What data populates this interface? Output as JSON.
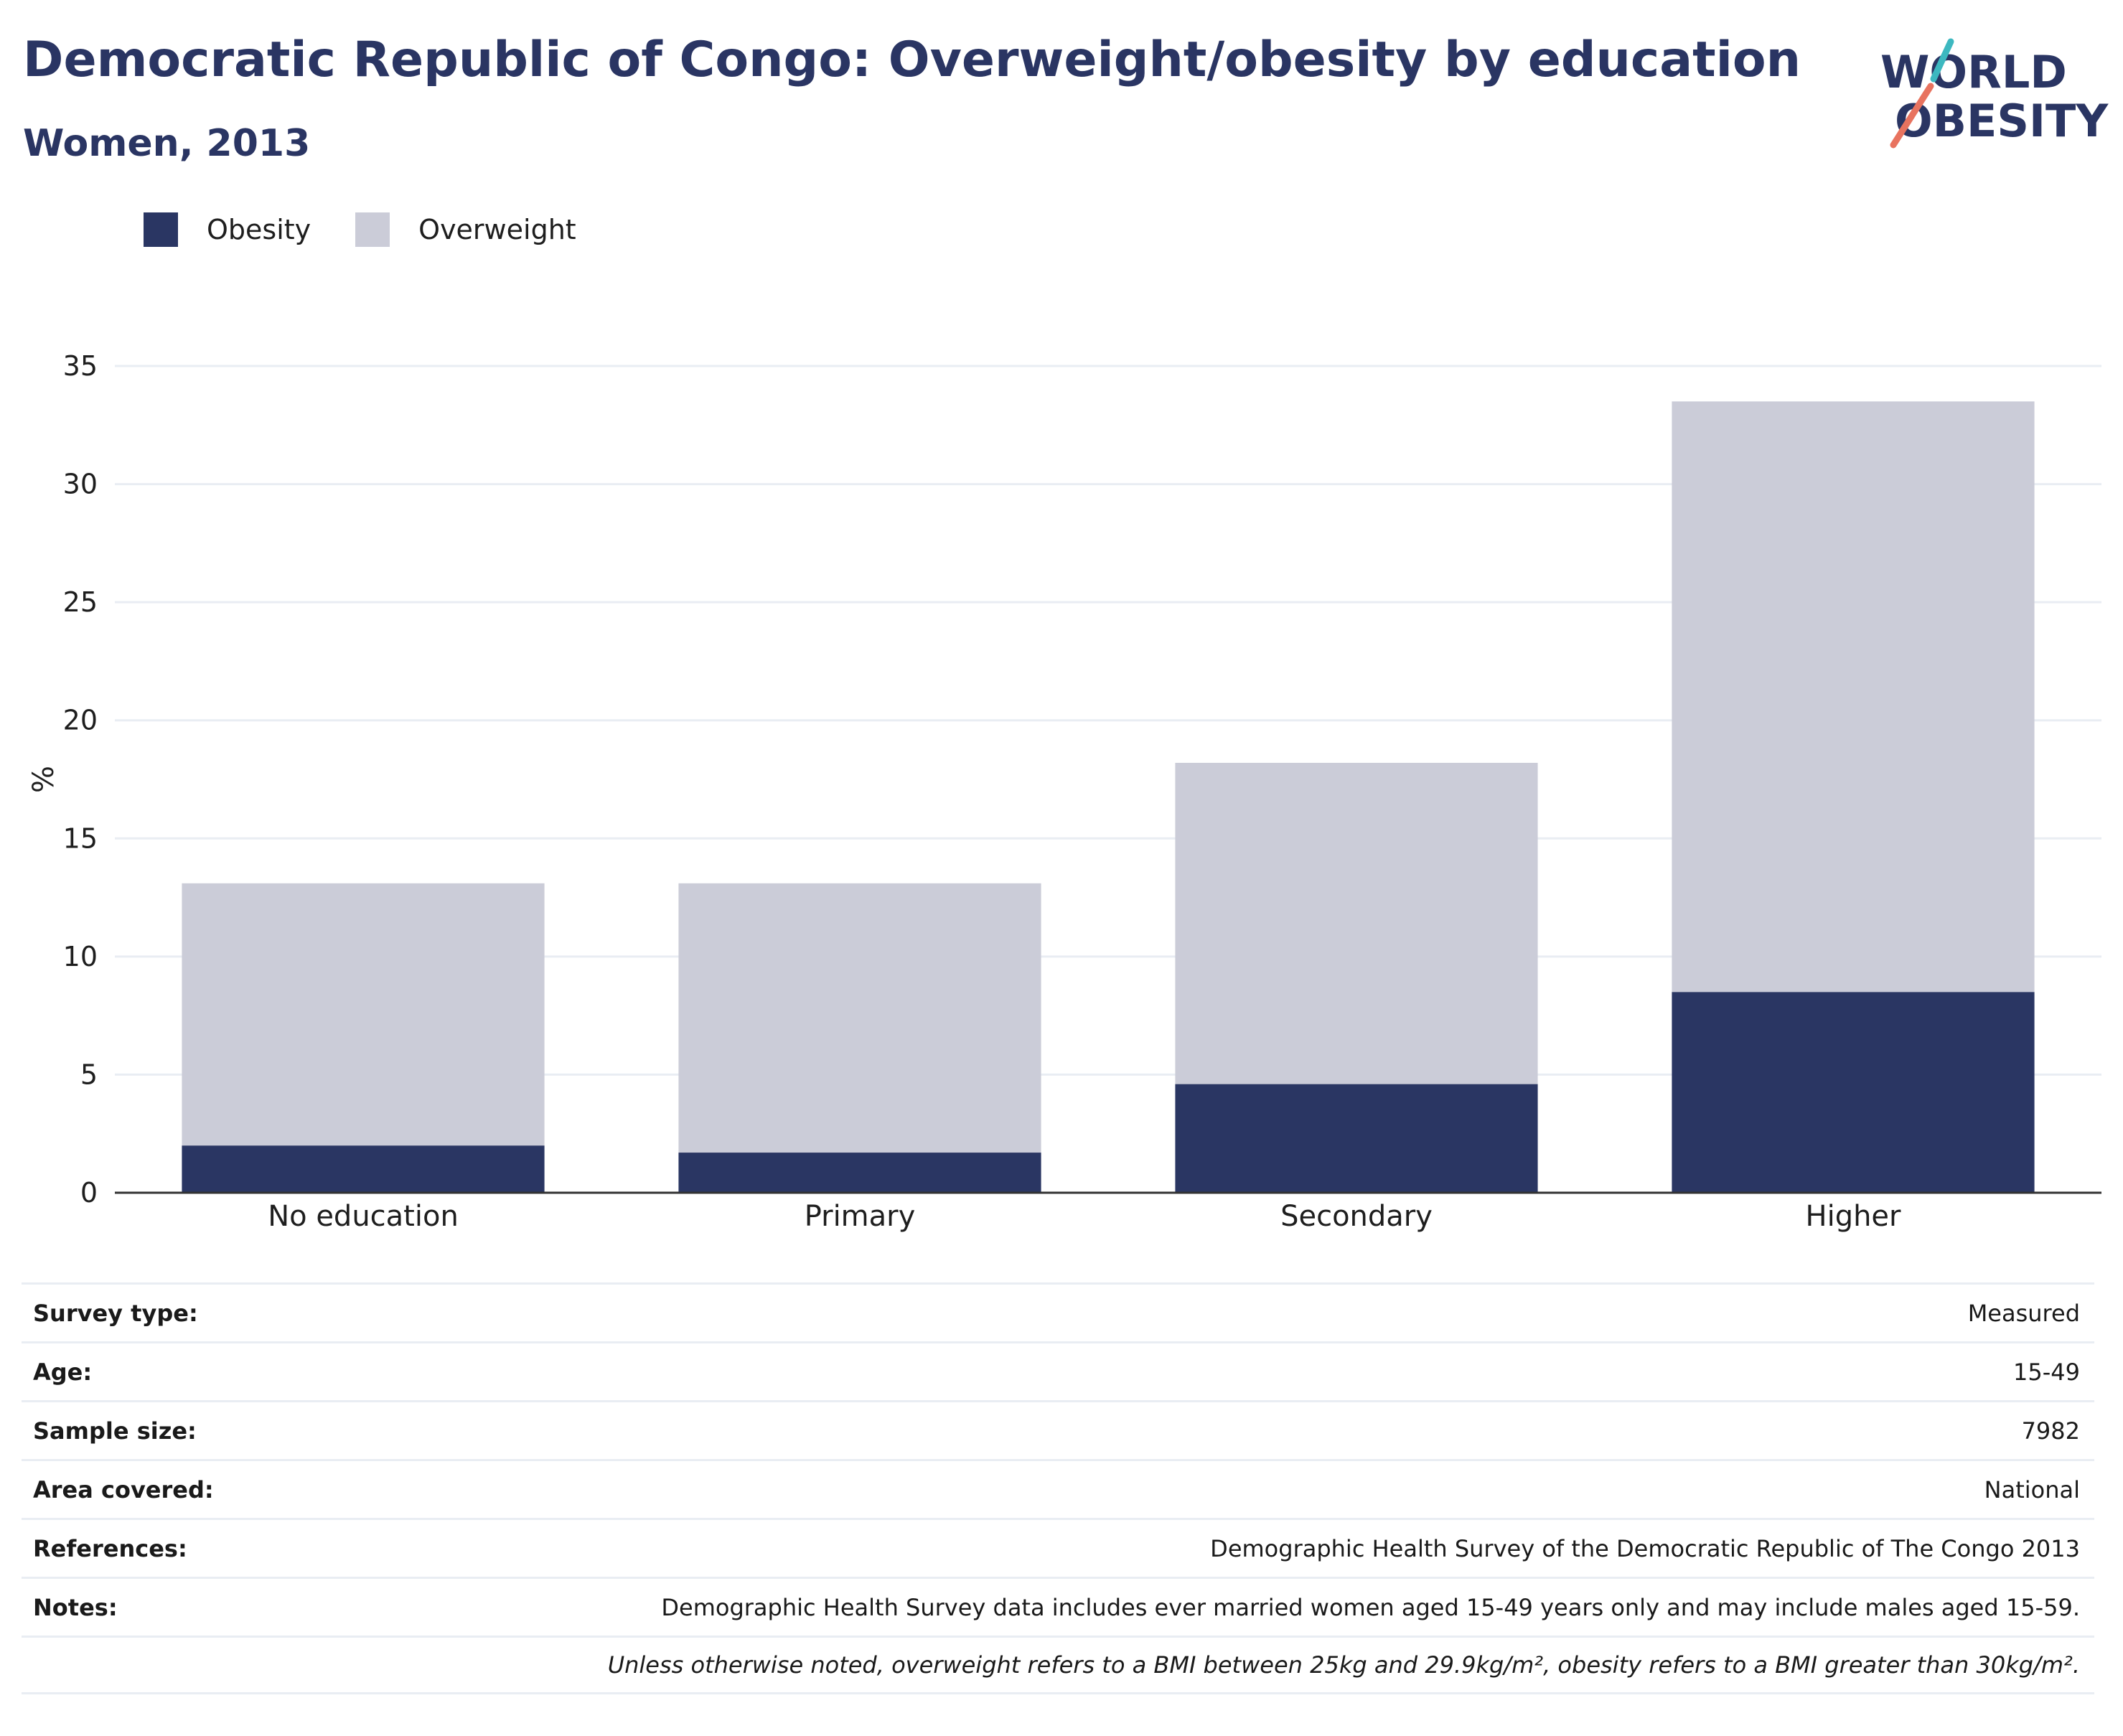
{
  "header": {
    "title": "Democratic Republic of Congo: Overweight/obesity by education",
    "subtitle": "Women, 2013"
  },
  "logo": {
    "line1": "WORLD",
    "line2": "OBESITY",
    "accent_teal": "#3db8c0",
    "accent_coral": "#e8735f"
  },
  "colors": {
    "obesity": "#2a3663",
    "overweight": "#cbccd8",
    "grid": "#e9edf3",
    "axis": "#333333"
  },
  "chart_data": {
    "type": "bar",
    "stacked": true,
    "categories": [
      "No education",
      "Primary",
      "Secondary",
      "Higher"
    ],
    "series": [
      {
        "name": "Obesity",
        "values": [
          2.0,
          1.7,
          4.6,
          8.5
        ]
      },
      {
        "name": "Overweight",
        "values": [
          11.1,
          11.4,
          13.6,
          25.0
        ]
      }
    ],
    "ylabel": "%",
    "ylim": [
      0,
      35
    ],
    "yticks": [
      0,
      5,
      10,
      15,
      20,
      25,
      30,
      35
    ],
    "grid": true,
    "legend_position": "top-left"
  },
  "info": {
    "survey_type": {
      "label": "Survey type:",
      "value": "Measured"
    },
    "age": {
      "label": "Age:",
      "value": "15-49"
    },
    "sample_size": {
      "label": "Sample size:",
      "value": "7982"
    },
    "area": {
      "label": "Area covered:",
      "value": "National"
    },
    "references": {
      "label": "References:",
      "value": "Demographic Health Survey of the Democratic Republic of The Congo 2013"
    },
    "notes": {
      "label": "Notes:",
      "value": "Demographic Health Survey data includes ever married women aged 15-49 years only and may include males aged 15-59."
    },
    "footnote": "Unless otherwise noted, overweight refers to a BMI between 25kg and 29.9kg/m², obesity refers to a BMI greater than 30kg/m²."
  }
}
